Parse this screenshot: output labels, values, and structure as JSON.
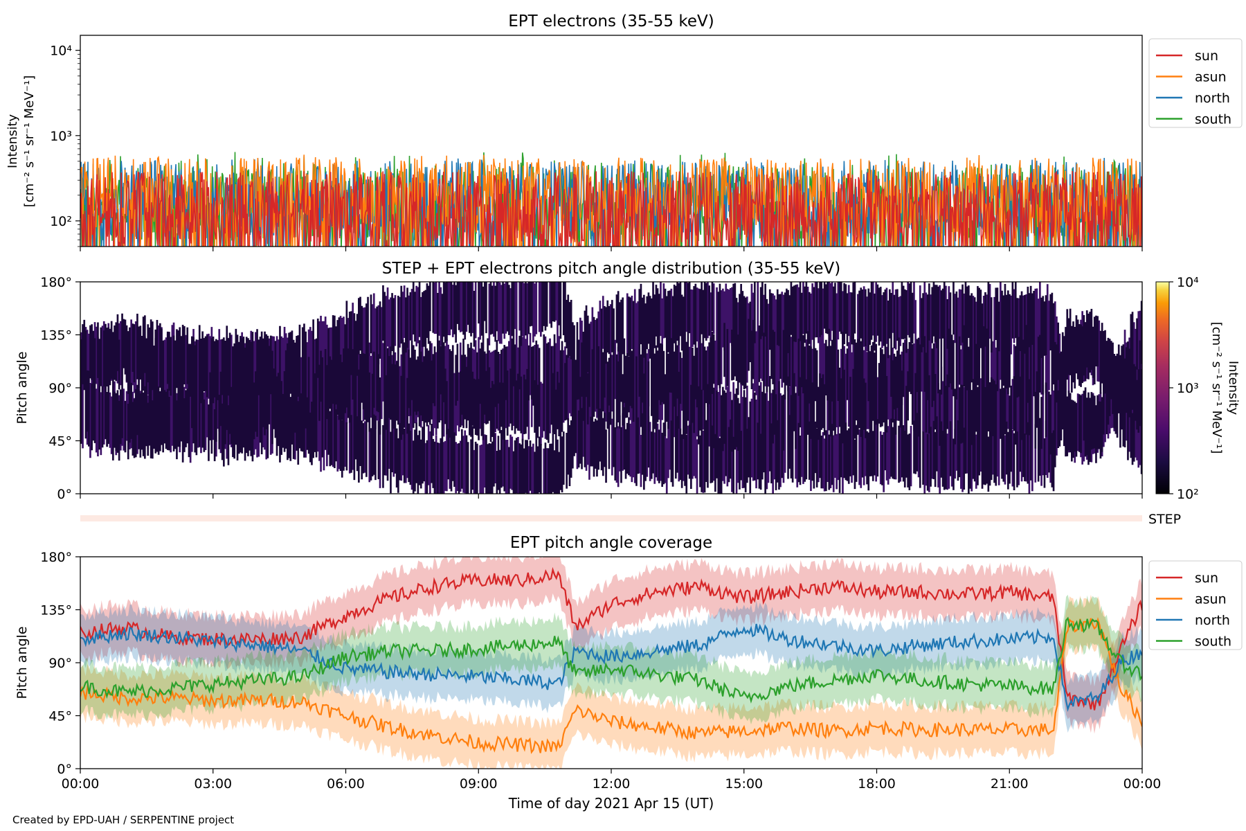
{
  "colors": {
    "sun": "#d62728",
    "asun": "#ff7f0e",
    "north": "#1f77b4",
    "south": "#2ca02c",
    "step_band": "#fde9e2",
    "pad_dark": "#1a0838",
    "pad_mid": "#3d1267"
  },
  "credit": "Created by EPD-UAH / SERPENTINE project",
  "chart_data": [
    {
      "type": "line",
      "title": "EPT electrons (35-55 keV)",
      "ylabel_line1": "Intensity",
      "ylabel_line2": "[cm⁻² s⁻¹ sr⁻¹ MeV⁻¹]",
      "yscale": "log",
      "ylim": [
        50,
        15000
      ],
      "y_ticks": [
        {
          "value": 100,
          "label": "10²"
        },
        {
          "value": 1000,
          "label": "10³"
        },
        {
          "value": 10000,
          "label": "10⁴"
        }
      ],
      "xlim": [
        0,
        24
      ],
      "legend_position": "outside-right-top",
      "series": [
        {
          "name": "sun",
          "typical": 150,
          "peak": 400
        },
        {
          "name": "asun",
          "typical": 220,
          "peak": 600
        },
        {
          "name": "north",
          "typical": 200,
          "peak": 550
        },
        {
          "name": "south",
          "typical": 180,
          "peak": 650
        }
      ]
    },
    {
      "type": "heatmap",
      "title": "STEP + EPT electrons pitch angle distribution (35-55 keV)",
      "ylabel": "Pitch angle",
      "ylim": [
        0,
        180
      ],
      "y_ticks": [
        {
          "value": 0,
          "label": "0°"
        },
        {
          "value": 45,
          "label": "45°"
        },
        {
          "value": 90,
          "label": "90°"
        },
        {
          "value": 135,
          "label": "135°"
        },
        {
          "value": 180,
          "label": "180°"
        }
      ],
      "xlim": [
        0,
        24
      ],
      "colorbar": {
        "label_line1": "Intensity",
        "label_line2": "[cm⁻² s⁻¹ sr⁻¹ MeV⁻¹]",
        "scale": "log",
        "range": [
          100,
          10000
        ],
        "ticks": [
          {
            "value": 100,
            "label": "10²"
          },
          {
            "value": 1000,
            "label": "10³"
          },
          {
            "value": 10000,
            "label": "10⁴"
          }
        ],
        "colormap": "inferno"
      }
    },
    {
      "type": "bar",
      "label": "STEP",
      "xlim": [
        0,
        24
      ]
    },
    {
      "type": "area",
      "title": "EPT pitch angle coverage",
      "ylabel": "Pitch angle",
      "xlabel": "Time of day 2021 Apr 15 (UT)",
      "ylim": [
        0,
        180
      ],
      "y_ticks": [
        {
          "value": 0,
          "label": "0°"
        },
        {
          "value": 45,
          "label": "45°"
        },
        {
          "value": 90,
          "label": "90°"
        },
        {
          "value": 135,
          "label": "135°"
        },
        {
          "value": 180,
          "label": "180°"
        }
      ],
      "xlim": [
        0,
        24
      ],
      "x_ticks": [
        {
          "value": 0,
          "label": "00:00"
        },
        {
          "value": 3,
          "label": "03:00"
        },
        {
          "value": 6,
          "label": "06:00"
        },
        {
          "value": 9,
          "label": "09:00"
        },
        {
          "value": 12,
          "label": "12:00"
        },
        {
          "value": 15,
          "label": "15:00"
        },
        {
          "value": 18,
          "label": "18:00"
        },
        {
          "value": 21,
          "label": "21:00"
        },
        {
          "value": 24,
          "label": "00:00"
        }
      ],
      "legend_position": "outside-right-top",
      "band_halfwidth": 20,
      "series": [
        {
          "name": "sun",
          "x": [
            0,
            1,
            2,
            3,
            4,
            5,
            6,
            7,
            8,
            9,
            10,
            10.8,
            11.2,
            12,
            13,
            14,
            15,
            16,
            17,
            18,
            19,
            20,
            21,
            22,
            22.3,
            23,
            23.5,
            24
          ],
          "y": [
            115,
            120,
            112,
            110,
            110,
            112,
            130,
            145,
            155,
            160,
            160,
            165,
            120,
            140,
            150,
            155,
            145,
            150,
            155,
            150,
            150,
            148,
            150,
            145,
            60,
            55,
            100,
            140
          ]
        },
        {
          "name": "asun",
          "x": [
            0,
            1,
            2,
            3,
            4,
            5,
            6,
            7,
            8,
            9,
            10,
            10.8,
            11.2,
            12,
            13,
            14,
            15,
            16,
            17,
            18,
            19,
            20,
            21,
            22,
            22.3,
            23,
            23.5,
            24
          ],
          "y": [
            65,
            60,
            60,
            58,
            58,
            57,
            45,
            35,
            28,
            22,
            20,
            18,
            50,
            40,
            35,
            30,
            32,
            35,
            32,
            35,
            33,
            33,
            33,
            33,
            120,
            125,
            70,
            40
          ]
        },
        {
          "name": "north",
          "x": [
            0,
            1,
            2,
            3,
            4,
            5,
            6,
            7,
            8,
            9,
            10,
            10.8,
            11.2,
            12,
            13,
            14,
            15,
            16,
            17,
            18,
            19,
            20,
            21,
            22,
            22.3,
            23,
            23.5,
            24
          ],
          "y": [
            110,
            115,
            112,
            108,
            105,
            100,
            85,
            82,
            80,
            78,
            75,
            72,
            100,
            95,
            100,
            105,
            120,
            110,
            105,
            100,
            105,
            108,
            110,
            112,
            55,
            60,
            90,
            100
          ]
        },
        {
          "name": "south",
          "x": [
            0,
            1,
            2,
            3,
            4,
            5,
            6,
            7,
            8,
            9,
            10,
            10.8,
            11.2,
            12,
            13,
            14,
            15,
            16,
            17,
            18,
            19,
            20,
            21,
            22,
            22.3,
            23,
            23.5,
            24
          ],
          "y": [
            70,
            65,
            68,
            72,
            75,
            78,
            95,
            100,
            100,
            102,
            105,
            108,
            80,
            85,
            80,
            75,
            60,
            70,
            75,
            80,
            75,
            72,
            70,
            68,
            125,
            120,
            90,
            80
          ]
        }
      ]
    }
  ]
}
